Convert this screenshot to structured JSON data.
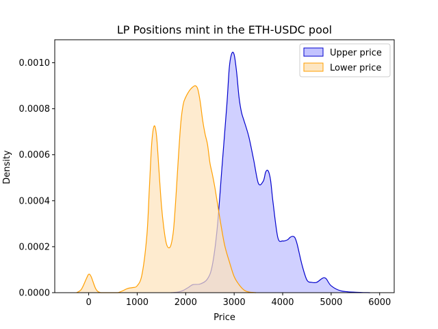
{
  "chart_data": {
    "type": "area",
    "title": "LP Positions mint in the ETH-USDC pool",
    "xlabel": "Price",
    "ylabel": "Density",
    "xlim": [
      -700,
      6300
    ],
    "ylim": [
      0,
      0.0011
    ],
    "xticks": [
      0,
      1000,
      2000,
      3000,
      4000,
      5000,
      6000
    ],
    "xtick_labels": [
      "0",
      "1000",
      "2000",
      "3000",
      "4000",
      "5000",
      "6000"
    ],
    "yticks": [
      0,
      0.0002,
      0.0004,
      0.0006,
      0.0008,
      0.001
    ],
    "ytick_labels": [
      "0.0000",
      "0.0002",
      "0.0004",
      "0.0006",
      "0.0008",
      "0.0010"
    ],
    "grid": false,
    "legend_position": "top-right",
    "series": [
      {
        "name": "Upper price",
        "color": "#0000cc",
        "fill": "#bcbcff",
        "x": [
          1700,
          1850,
          1950,
          2050,
          2150,
          2300,
          2450,
          2550,
          2650,
          2750,
          2850,
          2900,
          2950,
          3000,
          3050,
          3100,
          3150,
          3200,
          3300,
          3400,
          3500,
          3600,
          3650,
          3700,
          3750,
          3800,
          3900,
          4000,
          4100,
          4150,
          4200,
          4250,
          4300,
          4400,
          4500,
          4600,
          4700,
          4800,
          4850,
          4900,
          5000,
          5200,
          5500,
          5800
        ],
        "y": [
          0.0,
          3e-06,
          1e-05,
          2.2e-05,
          3.5e-05,
          3.8e-05,
          6e-05,
          0.00012,
          0.00028,
          0.00055,
          0.00082,
          0.00098,
          0.00104,
          0.001035,
          0.00096,
          0.00085,
          0.000785,
          0.00075,
          0.00068,
          0.00058,
          0.000475,
          0.000485,
          0.000525,
          0.00053,
          0.00049,
          0.000395,
          0.00024,
          0.000225,
          0.00023,
          0.00024,
          0.000245,
          0.00024,
          0.00021,
          0.00012,
          5.5e-05,
          4.5e-05,
          4.5e-05,
          6e-05,
          6.5e-05,
          6e-05,
          3e-05,
          8e-06,
          2e-06,
          0.0
        ]
      },
      {
        "name": "Lower price",
        "color": "#ff9f00",
        "fill": "#fde3bb",
        "x": [
          -250,
          -150,
          -50,
          0,
          50,
          150,
          250,
          400,
          600,
          800,
          900,
          1000,
          1100,
          1200,
          1250,
          1300,
          1350,
          1400,
          1450,
          1500,
          1550,
          1600,
          1650,
          1700,
          1750,
          1800,
          1850,
          1900,
          1950,
          2000,
          2050,
          2100,
          2150,
          2200,
          2250,
          2300,
          2350,
          2400,
          2450,
          2500,
          2550,
          2600,
          2650,
          2700,
          2800,
          2900,
          3000,
          3100,
          3200,
          3300,
          3450
        ],
        "y": [
          0.0,
          1.5e-05,
          6e-05,
          8e-05,
          7e-05,
          1.5e-05,
          0.0,
          0.0,
          0.0,
          1.8e-05,
          2.2e-05,
          3e-05,
          8e-05,
          0.00025,
          0.00045,
          0.00065,
          0.000725,
          0.00068,
          0.00053,
          0.00038,
          0.00028,
          0.000215,
          0.000195,
          0.00021,
          0.000275,
          0.00042,
          0.00059,
          0.00074,
          0.00082,
          0.00085,
          0.00087,
          0.000885,
          0.000895,
          0.0009,
          0.000885,
          0.00083,
          0.00075,
          0.00069,
          0.000645,
          0.000565,
          0.000515,
          0.00046,
          0.000395,
          0.00033,
          0.00021,
          0.000135,
          7e-05,
          3.5e-05,
          1.2e-05,
          3e-06,
          0.0
        ]
      }
    ]
  }
}
